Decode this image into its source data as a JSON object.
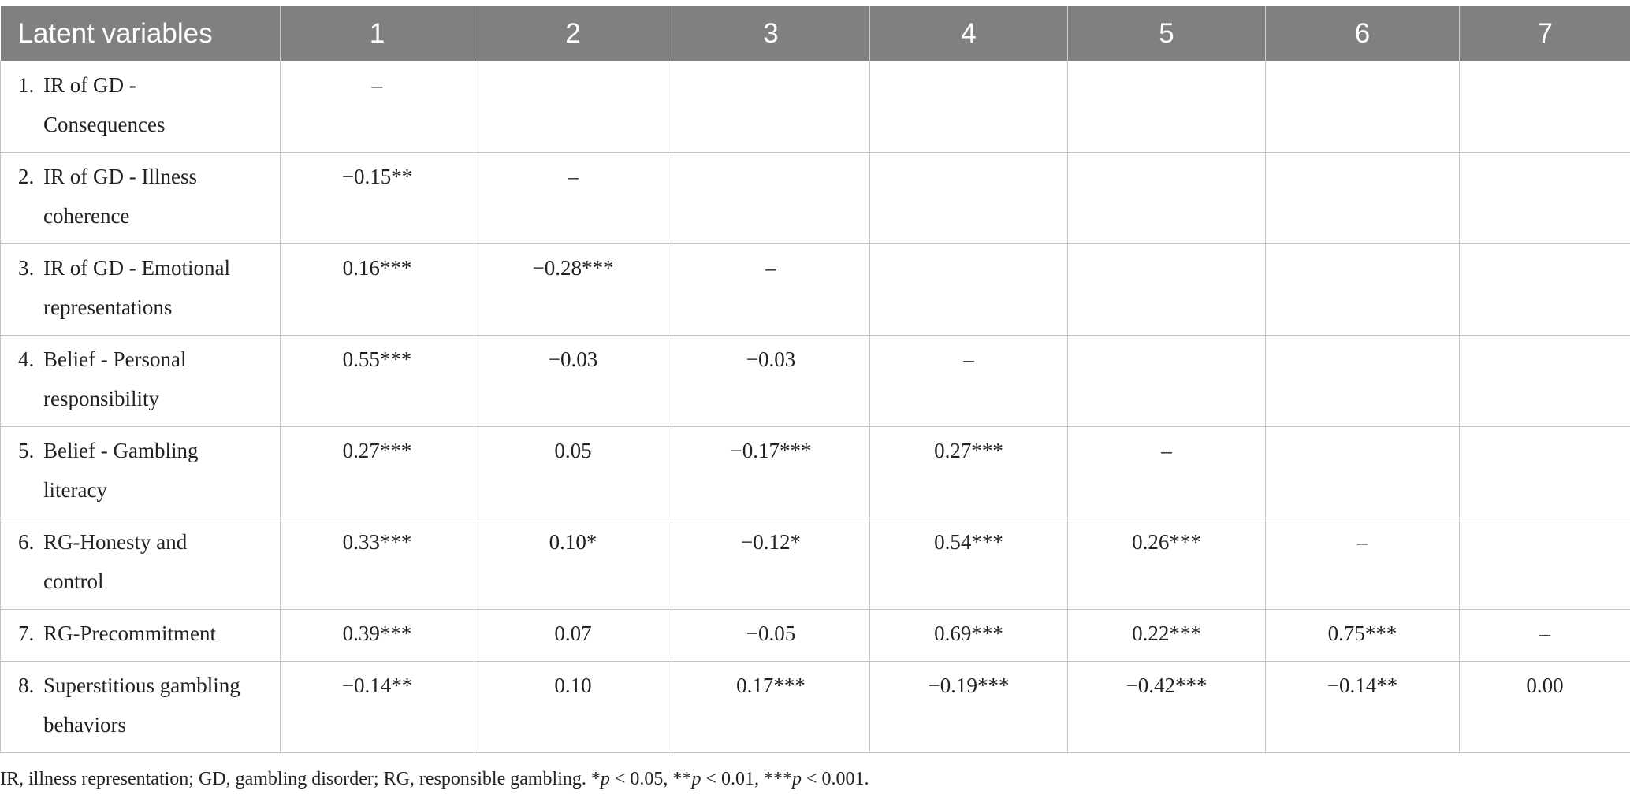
{
  "table": {
    "header": [
      "Latent variables",
      "1",
      "2",
      "3",
      "4",
      "5",
      "6",
      "7"
    ],
    "rows": [
      {
        "num": "1.",
        "label": "IR of GD -\nConsequences",
        "label_lines": [
          "IR of GD -",
          "Consequences"
        ],
        "cells": [
          "–",
          "",
          "",
          "",
          "",
          "",
          ""
        ]
      },
      {
        "num": "2.",
        "label_lines": [
          "IR of GD - Illness",
          "coherence"
        ],
        "cells": [
          "−0.15**",
          "–",
          "",
          "",
          "",
          "",
          ""
        ]
      },
      {
        "num": "3.",
        "label_lines": [
          "IR of GD - Emotional",
          "representations"
        ],
        "cells": [
          "0.16***",
          "−0.28***",
          "–",
          "",
          "",
          "",
          ""
        ]
      },
      {
        "num": "4.",
        "label_lines": [
          "Belief - Personal",
          "responsibility"
        ],
        "cells": [
          "0.55***",
          "−0.03",
          "−0.03",
          "–",
          "",
          "",
          ""
        ]
      },
      {
        "num": "5.",
        "label_lines": [
          "Belief - Gambling",
          "literacy"
        ],
        "cells": [
          "0.27***",
          "0.05",
          "−0.17***",
          "0.27***",
          "–",
          "",
          ""
        ]
      },
      {
        "num": "6.",
        "label_lines": [
          "RG-Honesty and",
          "control"
        ],
        "cells": [
          "0.33***",
          "0.10*",
          "−0.12*",
          "0.54***",
          "0.26***",
          "–",
          ""
        ]
      },
      {
        "num": "7.",
        "label_lines": [
          "RG-Precommitment"
        ],
        "cells": [
          "0.39***",
          "0.07",
          "−0.05",
          "0.69***",
          "0.22***",
          "0.75***",
          "–"
        ]
      },
      {
        "num": "8.",
        "label_lines": [
          "Superstitious gambling",
          "behaviors"
        ],
        "cells": [
          "−0.14**",
          "0.10",
          "0.17***",
          "−0.19***",
          "−0.42***",
          "−0.14**",
          "0.00"
        ]
      }
    ]
  },
  "footnote": {
    "prefix": "IR, illness representation; GD, gambling disorder; RG, responsible gambling. *",
    "p1": "p",
    "t1": " < 0.05, **",
    "p2": "p",
    "t2": " < 0.01, ***",
    "p3": "p",
    "t3": " < 0.001."
  }
}
